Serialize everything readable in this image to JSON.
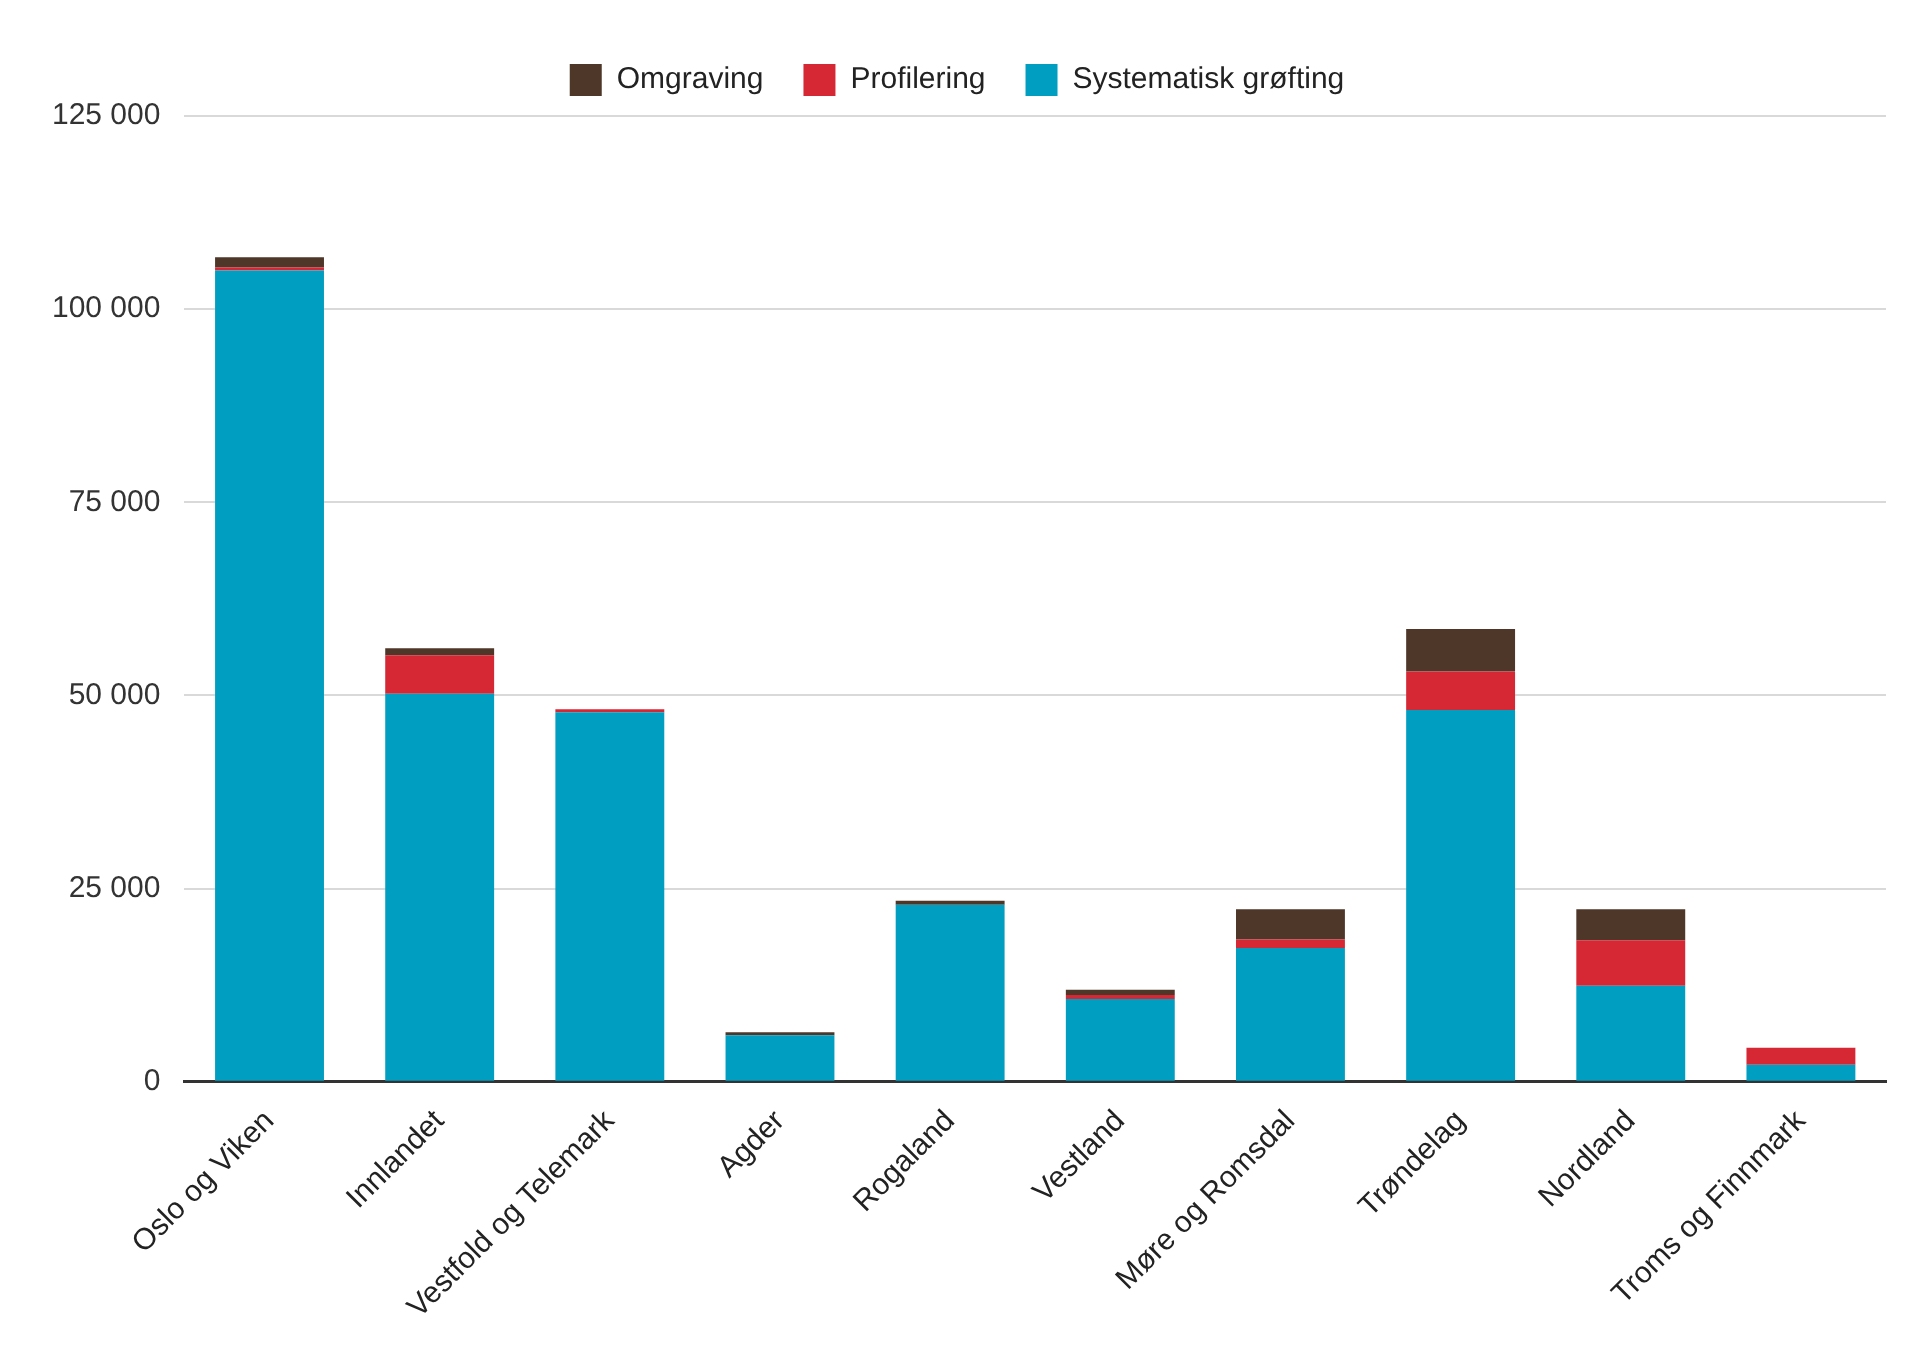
{
  "chart_data": {
    "type": "bar",
    "stacked": true,
    "categories": [
      "Oslo og Viken",
      "Innlandet",
      "Vestfold og Telemark",
      "Agder",
      "Rogaland",
      "Vestland",
      "Møre og Romsdal",
      "Trøndelag",
      "Nordland",
      "Troms og Finnmark"
    ],
    "series": [
      {
        "name": "Systematisk grøfting",
        "color": "#009ec1",
        "values": [
          105000,
          50200,
          47800,
          6000,
          22900,
          10700,
          17300,
          48100,
          12400,
          2200
        ]
      },
      {
        "name": "Profilering",
        "color": "#d52734",
        "values": [
          400,
          5000,
          400,
          0,
          0,
          500,
          1100,
          5000,
          5900,
          2200
        ]
      },
      {
        "name": "Omgraving",
        "color": "#4e3629",
        "values": [
          1300,
          900,
          0,
          400,
          500,
          700,
          3900,
          5500,
          4000,
          0
        ]
      }
    ],
    "ylim": [
      0,
      125000
    ],
    "yticks": [
      {
        "value": 0,
        "label": "0"
      },
      {
        "value": 25000,
        "label": "25 000"
      },
      {
        "value": 50000,
        "label": "50 000"
      },
      {
        "value": 75000,
        "label": "75 000"
      },
      {
        "value": 100000,
        "label": "100 000"
      },
      {
        "value": 125000,
        "label": "125 000"
      }
    ],
    "grid": "y",
    "legend": "top"
  }
}
